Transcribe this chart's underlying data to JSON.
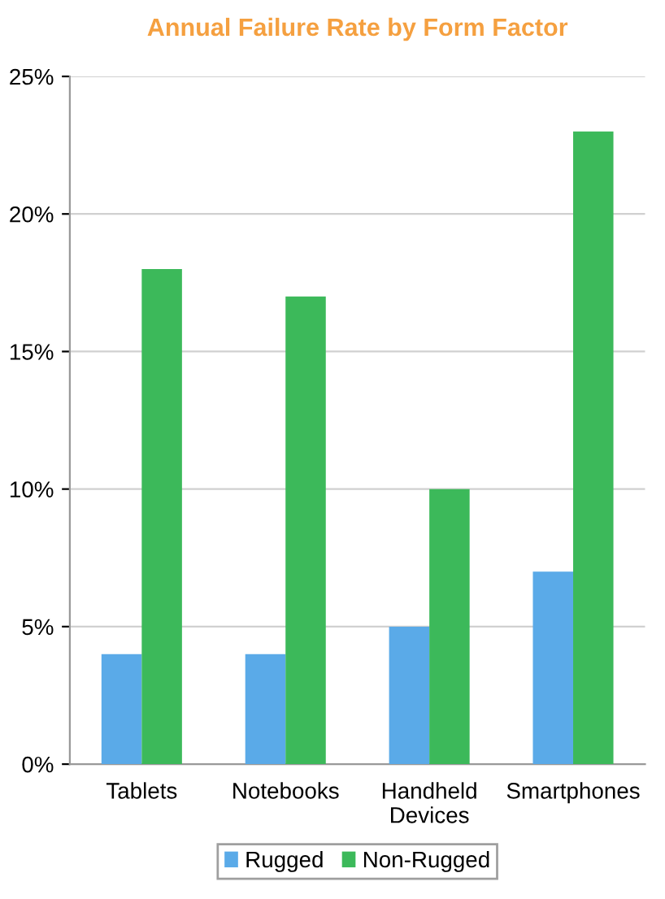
{
  "chart_data": {
    "type": "bar",
    "title": "Annual Failure Rate by Form Factor",
    "categories": [
      "Tablets",
      "Notebooks",
      "Handheld\nDevices",
      "Smartphones"
    ],
    "series": [
      {
        "name": "Rugged",
        "color": "#5aaae8",
        "values": [
          4,
          4,
          5,
          7
        ]
      },
      {
        "name": "Non-Rugged",
        "color": "#3cb95a",
        "values": [
          18,
          17,
          10,
          23
        ]
      }
    ],
    "ylim": [
      0,
      25
    ],
    "yticks": [
      {
        "value": 0,
        "label": "0%"
      },
      {
        "value": 5,
        "label": "5%"
      },
      {
        "value": 10,
        "label": "10%"
      },
      {
        "value": 15,
        "label": "15%"
      },
      {
        "value": 20,
        "label": "20%"
      },
      {
        "value": 25,
        "label": "25%"
      }
    ],
    "grid": "y",
    "legend": "bottom"
  }
}
